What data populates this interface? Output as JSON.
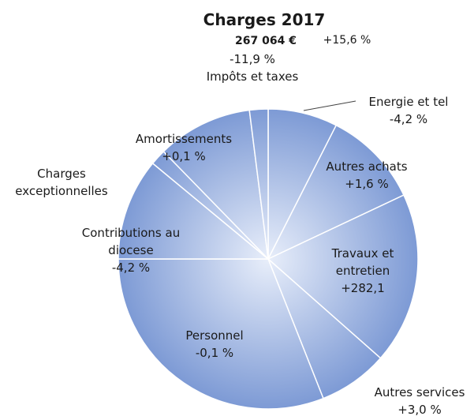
{
  "chart_data": {
    "type": "pie",
    "title": "Charges 2017",
    "total": "267 064 €",
    "total_change": "+15,6 %",
    "colors": {
      "base": "#6f8fd0",
      "light": "#e8eefa",
      "stroke": "#ffffff"
    },
    "slices": [
      {
        "name": "Energie et tel",
        "change": "-4,2 %",
        "value": 7.5
      },
      {
        "name": "Autres achats",
        "change": "+1,6 %",
        "value": 10.5
      },
      {
        "name": "Travaux et entretien",
        "name_lines": [
          "Travaux et",
          "entretien"
        ],
        "change": "+282,1",
        "value": 18.5
      },
      {
        "name": "Autres services",
        "change": "+3,0 %",
        "value": 7.5
      },
      {
        "name": "Personnel",
        "change": "-0,1 %",
        "value": 31.0
      },
      {
        "name": "Contributions au diocese",
        "name_lines": [
          "Contributions au",
          "diocese"
        ],
        "change": "-4,2 %",
        "value": 11.0
      },
      {
        "name": "Charges exceptionnelles",
        "name_lines": [
          "Charges",
          "exceptionnelles"
        ],
        "change": "",
        "value": 1.7
      },
      {
        "name": "Amortissements",
        "change": "+0,1 %",
        "value": 10.3
      },
      {
        "name": "Impôts et taxes",
        "change": "-11,9 %",
        "value": 2.0
      }
    ]
  }
}
